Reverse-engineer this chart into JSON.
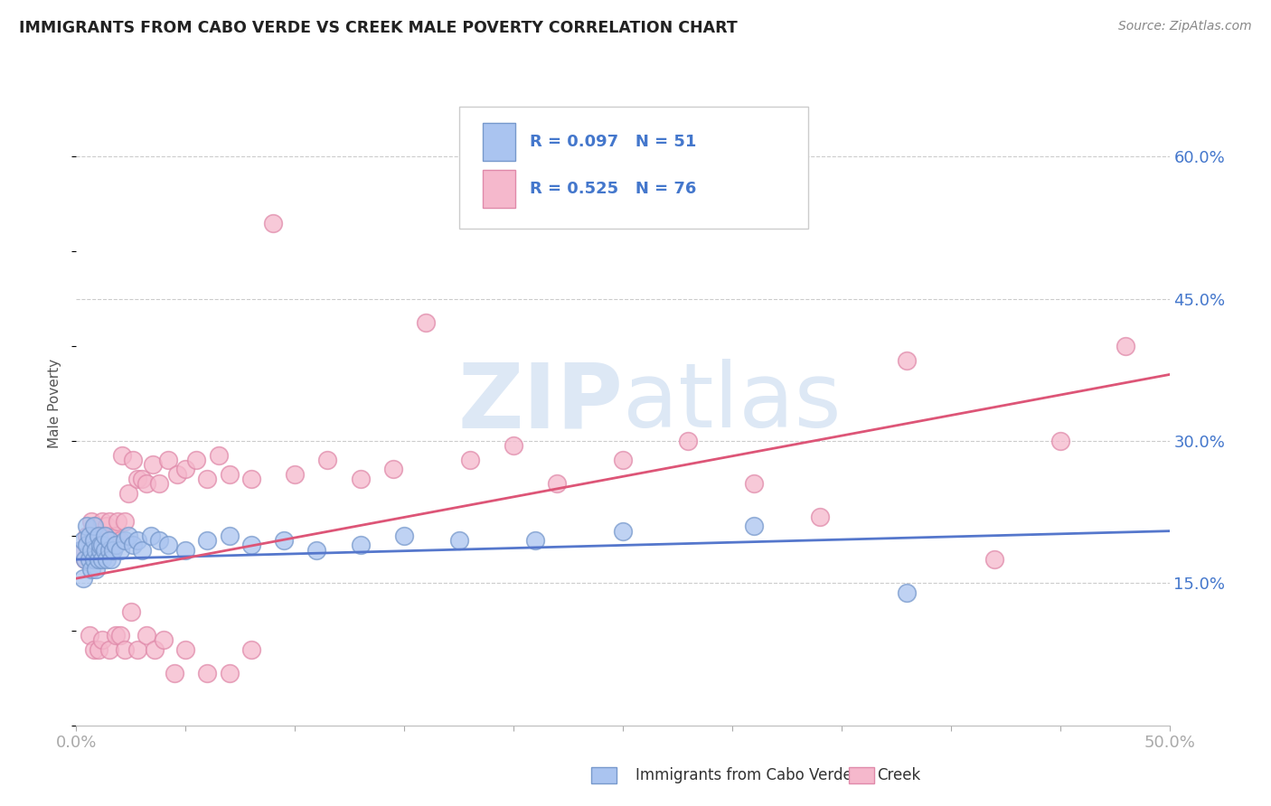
{
  "title": "IMMIGRANTS FROM CABO VERDE VS CREEK MALE POVERTY CORRELATION CHART",
  "source": "Source: ZipAtlas.com",
  "ylabel": "Male Poverty",
  "xlim": [
    0.0,
    0.5
  ],
  "ylim": [
    0.0,
    0.68
  ],
  "ytick_positions": [
    0.15,
    0.3,
    0.45,
    0.6
  ],
  "ytick_labels": [
    "15.0%",
    "30.0%",
    "45.0%",
    "60.0%"
  ],
  "series1_label": "Immigrants from Cabo Verde",
  "series1_R": "0.097",
  "series1_N": "51",
  "series1_color": "#aac4f0",
  "series1_edgecolor": "#7799cc",
  "series2_label": "Creek",
  "series2_R": "0.525",
  "series2_N": "76",
  "series2_color": "#f5b8cc",
  "series2_edgecolor": "#e08aaa",
  "trendline1_color": "#5577cc",
  "trendline2_color": "#dd5577",
  "watermark_color": "#dde8f5",
  "background_color": "#ffffff",
  "grid_color": "#cccccc",
  "tick_label_color": "#4477cc",
  "title_color": "#222222",
  "series1_x": [
    0.002,
    0.003,
    0.003,
    0.004,
    0.005,
    0.005,
    0.006,
    0.006,
    0.007,
    0.007,
    0.008,
    0.008,
    0.008,
    0.009,
    0.009,
    0.01,
    0.01,
    0.011,
    0.011,
    0.012,
    0.012,
    0.013,
    0.013,
    0.014,
    0.015,
    0.015,
    0.016,
    0.017,
    0.018,
    0.02,
    0.022,
    0.024,
    0.026,
    0.028,
    0.03,
    0.034,
    0.038,
    0.042,
    0.05,
    0.06,
    0.07,
    0.08,
    0.095,
    0.11,
    0.13,
    0.15,
    0.175,
    0.21,
    0.25,
    0.31,
    0.38
  ],
  "series1_y": [
    0.185,
    0.195,
    0.155,
    0.175,
    0.21,
    0.19,
    0.2,
    0.175,
    0.185,
    0.165,
    0.195,
    0.21,
    0.175,
    0.185,
    0.165,
    0.2,
    0.175,
    0.185,
    0.19,
    0.175,
    0.19,
    0.185,
    0.2,
    0.175,
    0.185,
    0.195,
    0.175,
    0.185,
    0.19,
    0.185,
    0.195,
    0.2,
    0.19,
    0.195,
    0.185,
    0.2,
    0.195,
    0.19,
    0.185,
    0.195,
    0.2,
    0.19,
    0.195,
    0.185,
    0.19,
    0.2,
    0.195,
    0.195,
    0.205,
    0.21,
    0.14
  ],
  "series1_trendline_x": [
    0.0,
    0.5
  ],
  "series1_trendline_y": [
    0.175,
    0.205
  ],
  "series2_x": [
    0.002,
    0.004,
    0.005,
    0.006,
    0.007,
    0.007,
    0.008,
    0.009,
    0.009,
    0.01,
    0.01,
    0.011,
    0.012,
    0.012,
    0.013,
    0.013,
    0.014,
    0.015,
    0.015,
    0.016,
    0.017,
    0.018,
    0.019,
    0.02,
    0.021,
    0.022,
    0.024,
    0.026,
    0.028,
    0.03,
    0.032,
    0.035,
    0.038,
    0.042,
    0.046,
    0.05,
    0.055,
    0.06,
    0.065,
    0.07,
    0.08,
    0.09,
    0.1,
    0.115,
    0.13,
    0.145,
    0.16,
    0.18,
    0.2,
    0.22,
    0.25,
    0.28,
    0.31,
    0.34,
    0.38,
    0.42,
    0.45,
    0.48,
    0.006,
    0.008,
    0.01,
    0.012,
    0.015,
    0.018,
    0.02,
    0.022,
    0.025,
    0.028,
    0.032,
    0.036,
    0.04,
    0.045,
    0.05,
    0.06,
    0.07,
    0.08
  ],
  "series2_y": [
    0.185,
    0.175,
    0.2,
    0.185,
    0.195,
    0.215,
    0.2,
    0.185,
    0.21,
    0.185,
    0.2,
    0.195,
    0.215,
    0.195,
    0.2,
    0.185,
    0.21,
    0.2,
    0.215,
    0.185,
    0.195,
    0.2,
    0.215,
    0.195,
    0.285,
    0.215,
    0.245,
    0.28,
    0.26,
    0.26,
    0.255,
    0.275,
    0.255,
    0.28,
    0.265,
    0.27,
    0.28,
    0.26,
    0.285,
    0.265,
    0.26,
    0.53,
    0.265,
    0.28,
    0.26,
    0.27,
    0.425,
    0.28,
    0.295,
    0.255,
    0.28,
    0.3,
    0.255,
    0.22,
    0.385,
    0.175,
    0.3,
    0.4,
    0.095,
    0.08,
    0.08,
    0.09,
    0.08,
    0.095,
    0.095,
    0.08,
    0.12,
    0.08,
    0.095,
    0.08,
    0.09,
    0.055,
    0.08,
    0.055,
    0.055,
    0.08
  ],
  "series2_trendline_x": [
    0.0,
    0.5
  ],
  "series2_trendline_y": [
    0.155,
    0.37
  ]
}
